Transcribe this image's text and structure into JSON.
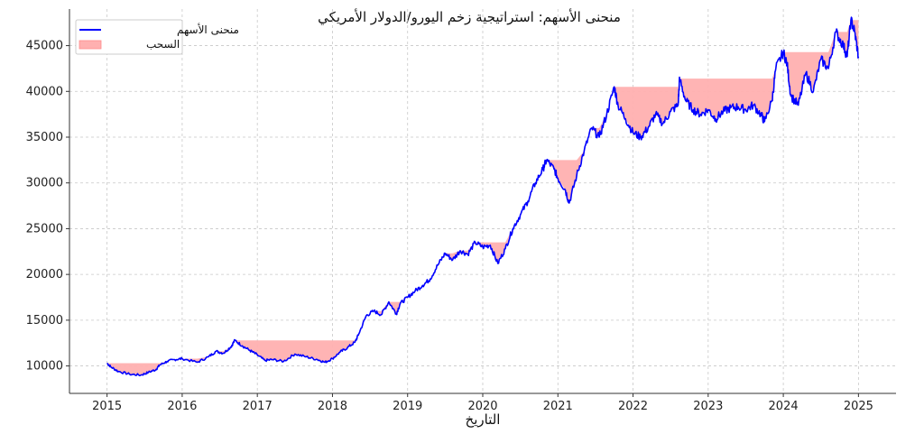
{
  "chart_data": {
    "type": "line",
    "title": "منحنى الأسهم: استراتيجية زخم اليورو/الدولار الأمريكي",
    "xlabel": "التاريخ",
    "ylabel": "",
    "x_ticks": [
      "2015",
      "2016",
      "2017",
      "2018",
      "2019",
      "2020",
      "2021",
      "2022",
      "2023",
      "2024",
      "2025"
    ],
    "y_ticks": [
      "10000",
      "15000",
      "20000",
      "25000",
      "30000",
      "35000",
      "40000",
      "45000"
    ],
    "xlim": [
      2014.5,
      2025.5
    ],
    "ylim": [
      7000,
      49000
    ],
    "grid": true,
    "legend_position": "top-left",
    "series": [
      {
        "name": "منحنى الأسهم",
        "color": "#0000ff",
        "x": [
          2015.0,
          2015.05,
          2015.15,
          2015.3,
          2015.45,
          2015.55,
          2015.65,
          2015.7,
          2015.8,
          2015.9,
          2016.0,
          2016.2,
          2016.35,
          2016.45,
          2016.55,
          2016.65,
          2016.7,
          2016.8,
          2016.9,
          2017.0,
          2017.1,
          2017.2,
          2017.35,
          2017.5,
          2017.65,
          2017.8,
          2017.9,
          2018.0,
          2018.1,
          2018.2,
          2018.3,
          2018.35,
          2018.45,
          2018.55,
          2018.65,
          2018.75,
          2018.85,
          2018.9,
          2019.0,
          2019.1,
          2019.2,
          2019.3,
          2019.4,
          2019.5,
          2019.6,
          2019.7,
          2019.8,
          2019.9,
          2020.0,
          2020.1,
          2020.2,
          2020.3,
          2020.4,
          2020.5,
          2020.6,
          2020.7,
          2020.8,
          2020.85,
          2020.95,
          2021.0,
          2021.1,
          2021.15,
          2021.25,
          2021.35,
          2021.45,
          2021.55,
          2021.65,
          2021.75,
          2021.8,
          2021.9,
          2022.0,
          2022.1,
          2022.2,
          2022.3,
          2022.4,
          2022.5,
          2022.6,
          2022.62,
          2022.7,
          2022.8,
          2022.9,
          2023.0,
          2023.1,
          2023.2,
          2023.3,
          2023.4,
          2023.5,
          2023.6,
          2023.7,
          2023.75,
          2023.85,
          2023.9,
          2024.0,
          2024.05,
          2024.1,
          2024.2,
          2024.3,
          2024.4,
          2024.5,
          2024.6,
          2024.7,
          2024.8,
          2024.85,
          2024.9,
          2024.95,
          2025.0
        ],
        "y": [
          10300,
          9900,
          9400,
          9100,
          9000,
          9300,
          9600,
          10100,
          10500,
          10700,
          10800,
          10400,
          11000,
          11600,
          11400,
          12100,
          12800,
          12200,
          11700,
          11200,
          10600,
          10700,
          10500,
          11300,
          11000,
          10700,
          10400,
          10800,
          11500,
          12000,
          12600,
          13500,
          15500,
          16000,
          15600,
          17000,
          15700,
          16800,
          17500,
          18200,
          18800,
          19500,
          21000,
          22300,
          21600,
          22600,
          22200,
          23500,
          23000,
          23200,
          21200,
          22800,
          25000,
          26500,
          28000,
          30000,
          31500,
          32500,
          31500,
          30500,
          29200,
          27800,
          30800,
          33500,
          36000,
          35000,
          37500,
          40500,
          38500,
          37000,
          35500,
          35000,
          36000,
          37500,
          36500,
          37800,
          38500,
          41400,
          39000,
          38000,
          37500,
          38000,
          37000,
          37800,
          38200,
          38300,
          38000,
          38500,
          37500,
          36700,
          39000,
          42500,
          44300,
          43000,
          39500,
          38500,
          42000,
          40000,
          43500,
          42500,
          46500,
          45000,
          43800,
          47800,
          46500,
          43800
        ]
      }
    ],
    "drawdown": {
      "name": "السحب",
      "color": "#ffb0b0"
    }
  }
}
